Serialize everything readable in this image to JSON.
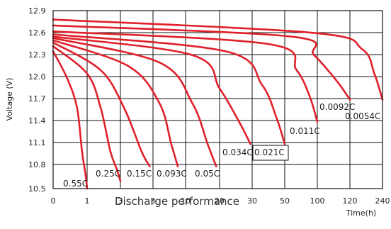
{
  "chart_data": {
    "type": "line",
    "title": "Discharge performance",
    "xlabel": "Time(h)",
    "ylabel": "Voltage (V)",
    "x_ticks": [
      "0",
      "1",
      "3",
      "5",
      "10",
      "20",
      "30",
      "50",
      "100",
      "120",
      "240"
    ],
    "y_ticks": [
      "12.9",
      "12.6",
      "12.3",
      "12.0",
      "11.7",
      "11.4",
      "11.1",
      "10.8",
      "10.5"
    ],
    "ylim": [
      10.5,
      12.9
    ],
    "grid": true,
    "line_color": "#e0202a",
    "series": [
      {
        "label": "0.55C",
        "points": [
          [
            0,
            12.35
          ],
          [
            0.4,
            12.0
          ],
          [
            0.7,
            11.6
          ],
          [
            0.85,
            11.0
          ],
          [
            0.95,
            10.7
          ],
          [
            1.0,
            10.5
          ]
        ]
      },
      {
        "label": "0.25C",
        "points": [
          [
            0,
            12.42
          ],
          [
            1.0,
            12.05
          ],
          [
            1.8,
            11.6
          ],
          [
            2.4,
            11.0
          ],
          [
            2.8,
            10.75
          ],
          [
            3.0,
            10.6
          ]
        ]
      },
      {
        "label": "0.15C",
        "points": [
          [
            0,
            12.47
          ],
          [
            1.8,
            12.1
          ],
          [
            3.2,
            11.6
          ],
          [
            4.3,
            11.0
          ],
          [
            4.8,
            10.8
          ]
        ]
      },
      {
        "label": "0.093C",
        "points": [
          [
            0,
            12.5
          ],
          [
            3.5,
            12.15
          ],
          [
            6.0,
            11.65
          ],
          [
            7.8,
            11.1
          ],
          [
            8.8,
            10.8
          ]
        ]
      },
      {
        "label": "0.05C",
        "points": [
          [
            0,
            12.53
          ],
          [
            6.0,
            12.2
          ],
          [
            12.0,
            11.65
          ],
          [
            16.5,
            11.1
          ],
          [
            19.0,
            10.8
          ]
        ]
      },
      {
        "label": "0.034C",
        "points": [
          [
            0,
            12.55
          ],
          [
            12.0,
            12.3
          ],
          [
            20.0,
            11.85
          ],
          [
            26.0,
            11.4
          ],
          [
            29.5,
            11.1
          ]
        ]
      },
      {
        "label": "0.021C",
        "points": [
          [
            0,
            12.58
          ],
          [
            22.0,
            12.35
          ],
          [
            36.0,
            11.9
          ],
          [
            45.0,
            11.45
          ],
          [
            50.0,
            11.1
          ]
        ]
      },
      {
        "label": "0.011C",
        "points": [
          [
            0,
            12.62
          ],
          [
            40.0,
            12.45
          ],
          [
            68.0,
            12.1
          ],
          [
            88.0,
            11.75
          ],
          [
            100.0,
            11.4
          ]
        ]
      },
      {
        "label": "0.0092C",
        "points": [
          [
            0,
            12.7
          ],
          [
            60.0,
            12.55
          ],
          [
            95.0,
            12.3
          ],
          [
            112.0,
            11.95
          ],
          [
            120.0,
            11.7
          ]
        ]
      },
      {
        "label": "0.0054C",
        "points": [
          [
            0,
            12.78
          ],
          [
            95.0,
            12.6
          ],
          [
            165.0,
            12.38
          ],
          [
            210.0,
            12.05
          ],
          [
            240.0,
            11.7
          ]
        ]
      }
    ]
  }
}
